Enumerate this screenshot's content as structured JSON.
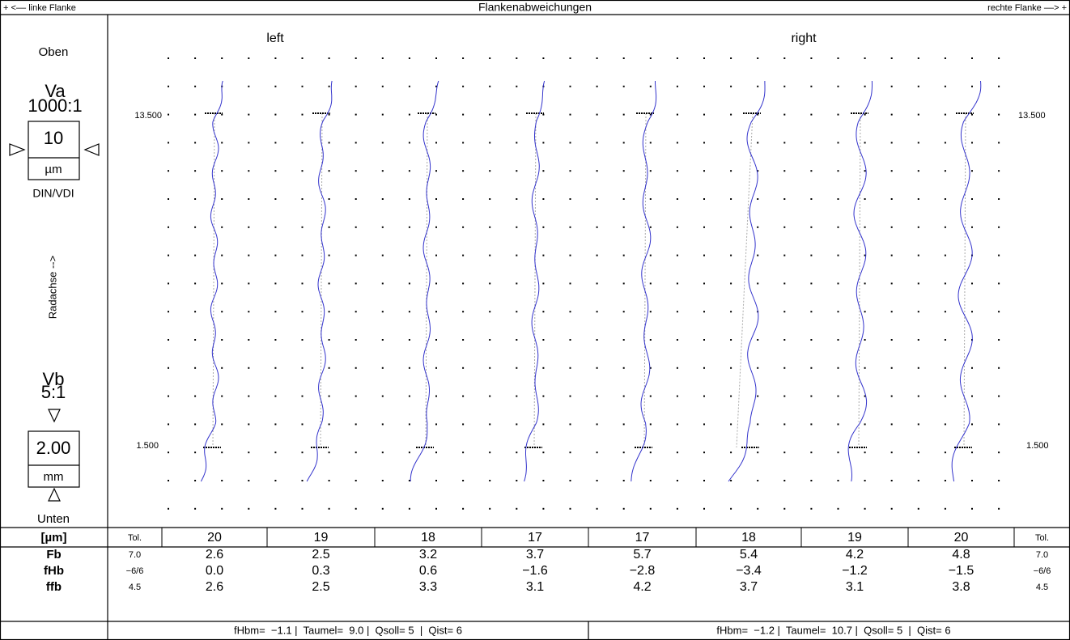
{
  "header": {
    "left": "+ <–– linke Flanke",
    "title": "Flankenabweichungen",
    "right": "rechte Flanke ––> +"
  },
  "left_panel": {
    "top": "Oben",
    "va_label": "Va",
    "va_ratio": "1000:1",
    "va_value": "10",
    "va_unit": "µm",
    "norm": "DIN/VDI",
    "axis_label": "Radachse -->",
    "vb_label": "Vb",
    "vb_ratio": "5:1",
    "vb_value": "2.00",
    "vb_unit": "mm",
    "bottom": "Unten"
  },
  "plot": {
    "sections": [
      "left",
      "right"
    ],
    "top_level": "13.500",
    "bottom_level": "1.500"
  },
  "table": {
    "header": [
      "[µm]",
      "Tol.",
      "20",
      "19",
      "18",
      "17",
      "17",
      "18",
      "19",
      "20",
      "Tol."
    ],
    "rows": [
      [
        "Fb",
        "7.0",
        "2.6",
        "2.5",
        "3.2",
        "3.7",
        "5.7",
        "5.4",
        "4.2",
        "4.8",
        "7.0"
      ],
      [
        "fHb",
        "−6/6",
        "0.0",
        "0.3",
        "0.6",
        "−1.6",
        "−2.8",
        "−3.4",
        "−1.2",
        "−1.5",
        "−6/6"
      ],
      [
        "ffb",
        "4.5",
        "2.6",
        "2.5",
        "3.3",
        "3.1",
        "4.2",
        "3.7",
        "3.1",
        "3.8",
        "4.5"
      ]
    ]
  },
  "footer": {
    "left": "fHbm=  −1.1 |  Taumel=  9.0 |  Qsoll= 5  |  Qist= 6",
    "right": "fHbm=  −1.2 |  Taumel=  10.7 |  Qsoll= 5  |  Qist= 6"
  }
}
